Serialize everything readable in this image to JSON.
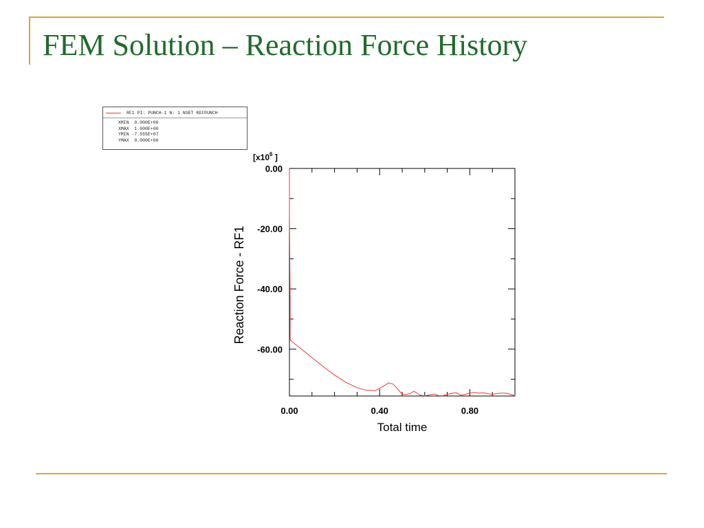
{
  "slide": {
    "title": "FEM Solution – Reaction Force History"
  },
  "legend": {
    "series_label": "RF1 PI: PUNCH-1 N: 1 NSET REFPUNCH",
    "stats": [
      "XMIN  0.000E+00",
      "XMAX  1.000E+00",
      "YMIN -7.555E+07",
      "YMAX  0.000E+00"
    ]
  },
  "colors": {
    "title": "#1f6b2a",
    "accent_bar": "#d4a82f",
    "series": "#e53935"
  },
  "chart_data": {
    "type": "line",
    "title": "",
    "xlabel": "Total time",
    "ylabel": "Reaction Force - RF1",
    "y_multiplier": "[x10^6]",
    "xlim": [
      0,
      1.0
    ],
    "ylim": [
      -75.55,
      0
    ],
    "x_ticks": [
      "0.00",
      "0.40",
      "0.80"
    ],
    "y_ticks": [
      "0.00",
      "-20.00",
      "-40.00",
      "-60.00"
    ],
    "series": [
      {
        "name": "RF1 PI: PUNCH-1 N: 1 NSET REFPUNCH",
        "x": [
          0.0,
          0.0,
          0.003,
          0.003,
          0.004,
          0.02,
          0.05,
          0.1,
          0.15,
          0.2,
          0.25,
          0.3,
          0.34,
          0.38,
          0.41,
          0.44,
          0.46,
          0.48,
          0.5,
          0.52,
          0.54,
          0.55,
          0.56,
          0.58,
          0.6,
          0.62,
          0.64,
          0.66,
          0.68,
          0.7,
          0.72,
          0.74,
          0.76,
          0.78,
          0.8,
          0.82,
          0.84,
          0.86,
          0.88,
          0.9,
          0.92,
          0.94,
          0.96,
          0.98,
          1.0
        ],
        "values": [
          0.0,
          -15.0,
          -43.0,
          -55.0,
          -57.0,
          -58.0,
          -59.8,
          -62.8,
          -65.8,
          -68.6,
          -71.0,
          -72.8,
          -73.6,
          -73.8,
          -72.6,
          -71.2,
          -71.6,
          -73.2,
          -75.0,
          -75.0,
          -74.6,
          -74.0,
          -74.3,
          -75.3,
          -75.5,
          -75.2,
          -74.9,
          -75.4,
          -75.5,
          -75.0,
          -74.6,
          -74.5,
          -75.3,
          -75.0,
          -74.5,
          -74.4,
          -74.6,
          -74.5,
          -74.8,
          -75.0,
          -74.7,
          -74.6,
          -74.6,
          -75.0,
          -75.5
        ]
      }
    ],
    "grid": false,
    "legend_position": "top-left"
  }
}
